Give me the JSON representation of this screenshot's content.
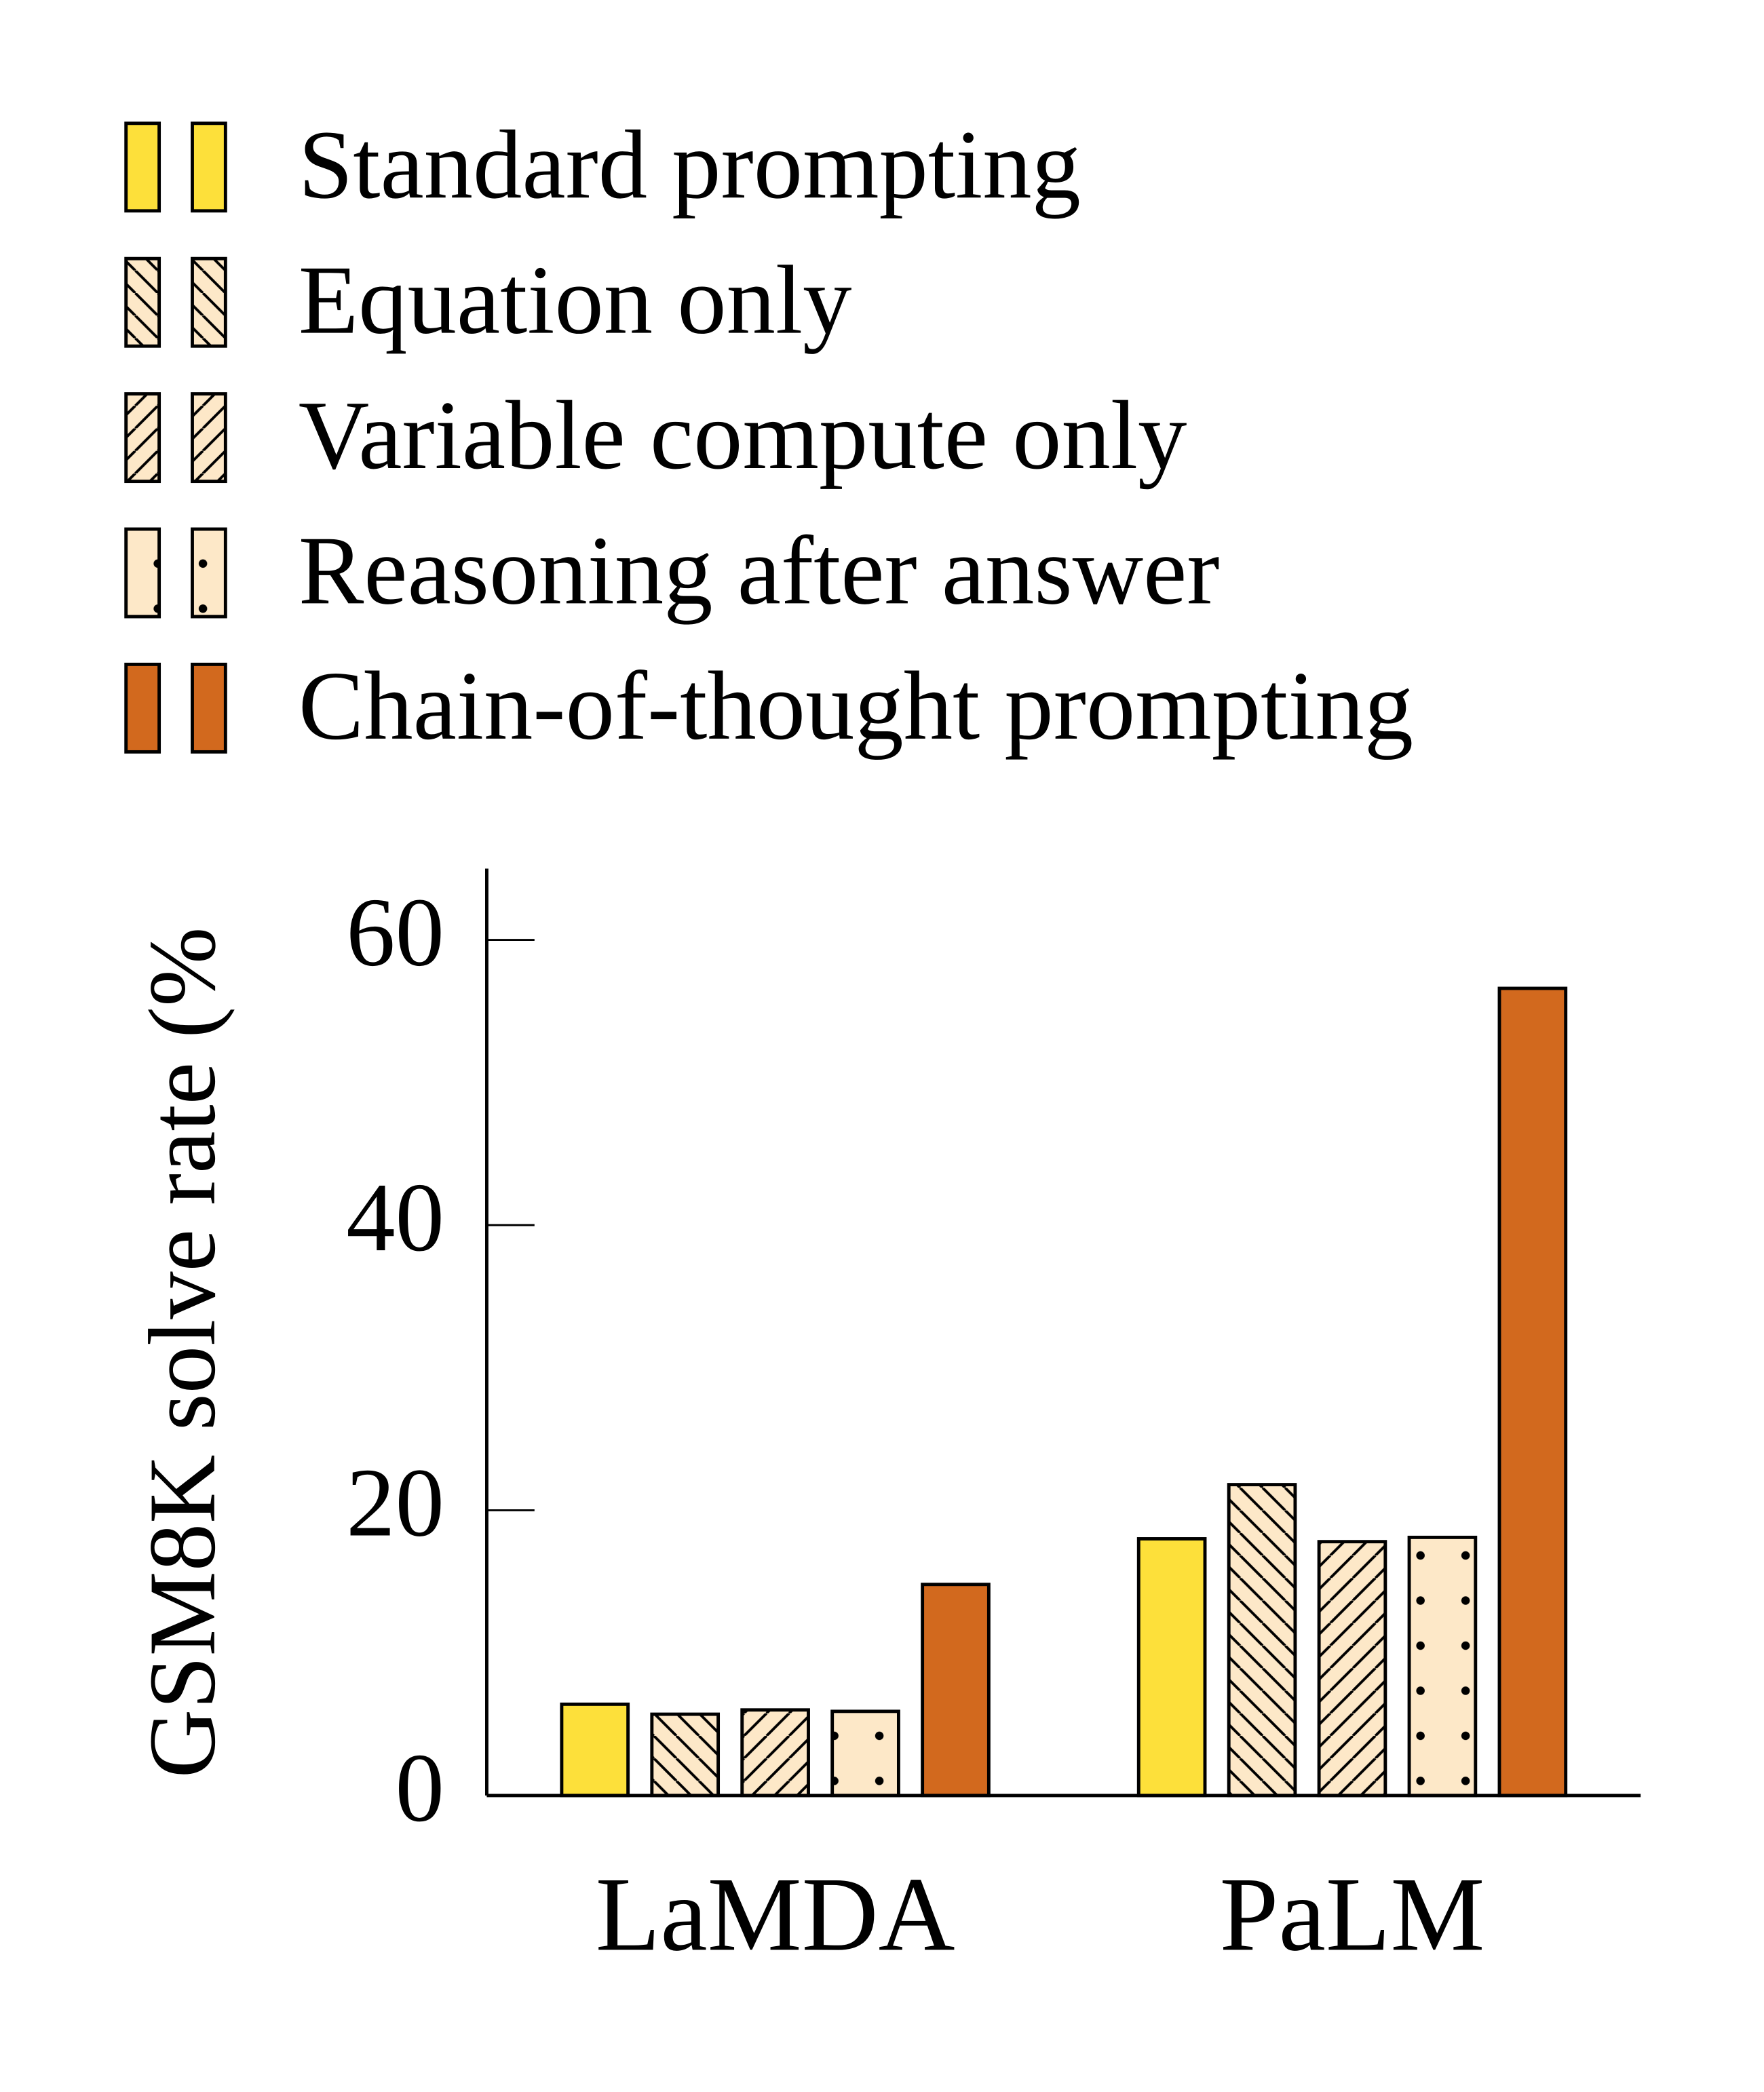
{
  "chart_data": {
    "type": "bar",
    "y_label": "GSM8K solve rate (%",
    "categories": [
      "LaMDA",
      "PaLM"
    ],
    "series": [
      {
        "name": "Standard prompting",
        "color": "#fde03a",
        "values": [
          6.4,
          18.0
        ]
      },
      {
        "name": "Equation only",
        "color": "#fde8c8",
        "hatch": "backslash",
        "values": [
          5.7,
          21.8
        ]
      },
      {
        "name": "Variable compute only",
        "color": "#fde8c8",
        "hatch": "slash",
        "values": [
          6.0,
          17.8
        ]
      },
      {
        "name": "Reasoning after answer",
        "color": "#fde8c8",
        "hatch": "dots",
        "values": [
          5.9,
          18.1
        ]
      },
      {
        "name": "Chain-of-thought prompting",
        "color": "#d2691e",
        "values": [
          14.8,
          56.6
        ]
      }
    ],
    "ylim": [
      0,
      65
    ],
    "yticks": [
      0,
      20,
      40,
      60
    ]
  }
}
